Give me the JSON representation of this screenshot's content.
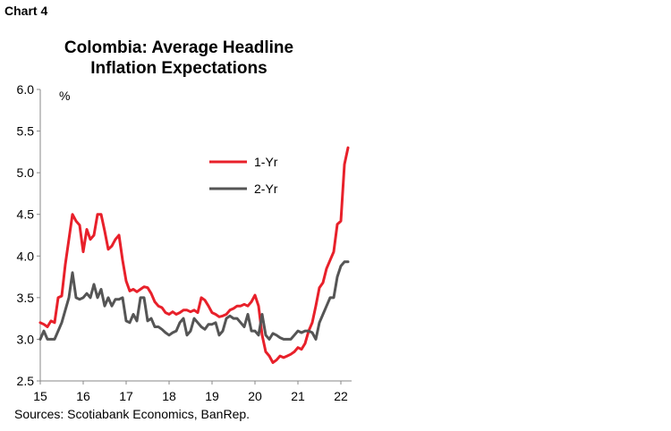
{
  "header": {
    "chart_label": "Chart 4"
  },
  "footer": {
    "source": "Sources: Scotiabank Economics, BanRep."
  },
  "chart_data": {
    "type": "line",
    "title_lines": [
      "Colombia: Average Headline",
      "Inflation Expectations"
    ],
    "unit": "%",
    "ylim": [
      2.5,
      6.0
    ],
    "yticks": [
      "6.0",
      "5.5",
      "5.0",
      "4.5",
      "4.0",
      "3.5",
      "3.0",
      "2.5"
    ],
    "xlim": [
      15,
      22.25
    ],
    "xticks": [
      "15",
      "16",
      "17",
      "18",
      "19",
      "20",
      "21",
      "22"
    ],
    "grid": false,
    "legend": "center-right",
    "colors": {
      "1-Yr": "#e8202a",
      "2-Yr": "#555555"
    },
    "series": [
      {
        "name": "1-Yr",
        "x": [
          15.0,
          15.083,
          15.167,
          15.25,
          15.333,
          15.417,
          15.5,
          15.583,
          15.667,
          15.75,
          15.833,
          15.917,
          16.0,
          16.083,
          16.167,
          16.25,
          16.333,
          16.417,
          16.5,
          16.583,
          16.667,
          16.75,
          16.833,
          16.917,
          17.0,
          17.083,
          17.167,
          17.25,
          17.333,
          17.417,
          17.5,
          17.583,
          17.667,
          17.75,
          17.833,
          17.917,
          18.0,
          18.083,
          18.167,
          18.25,
          18.333,
          18.417,
          18.5,
          18.583,
          18.667,
          18.75,
          18.833,
          18.917,
          19.0,
          19.083,
          19.167,
          19.25,
          19.333,
          19.417,
          19.5,
          19.583,
          19.667,
          19.75,
          19.833,
          19.917,
          20.0,
          20.083,
          20.167,
          20.25,
          20.333,
          20.417,
          20.5,
          20.583,
          20.667,
          20.75,
          20.833,
          20.917,
          21.0,
          21.083,
          21.167,
          21.25,
          21.333,
          21.417,
          21.5,
          21.583,
          21.667,
          21.75,
          21.833,
          21.917,
          22.0,
          22.083,
          22.167
        ],
        "values": [
          3.2,
          3.18,
          3.15,
          3.22,
          3.2,
          3.5,
          3.52,
          3.9,
          4.2,
          4.5,
          4.42,
          4.37,
          4.05,
          4.32,
          4.2,
          4.25,
          4.5,
          4.5,
          4.3,
          4.08,
          4.12,
          4.2,
          4.25,
          3.95,
          3.7,
          3.58,
          3.6,
          3.57,
          3.6,
          3.63,
          3.62,
          3.55,
          3.45,
          3.4,
          3.38,
          3.32,
          3.3,
          3.33,
          3.3,
          3.32,
          3.35,
          3.35,
          3.33,
          3.35,
          3.32,
          3.5,
          3.47,
          3.4,
          3.32,
          3.3,
          3.27,
          3.28,
          3.3,
          3.35,
          3.37,
          3.4,
          3.4,
          3.42,
          3.4,
          3.45,
          3.53,
          3.4,
          3.05,
          2.85,
          2.8,
          2.72,
          2.75,
          2.8,
          2.78,
          2.8,
          2.82,
          2.85,
          2.9,
          2.88,
          2.95,
          3.1,
          3.2,
          3.4,
          3.62,
          3.68,
          3.85,
          3.95,
          4.05,
          4.38,
          4.42,
          5.1,
          5.3
        ]
      },
      {
        "name": "2-Yr",
        "x": [
          15.0,
          15.083,
          15.167,
          15.25,
          15.333,
          15.417,
          15.5,
          15.583,
          15.667,
          15.75,
          15.833,
          15.917,
          16.0,
          16.083,
          16.167,
          16.25,
          16.333,
          16.417,
          16.5,
          16.583,
          16.667,
          16.75,
          16.833,
          16.917,
          17.0,
          17.083,
          17.167,
          17.25,
          17.333,
          17.417,
          17.5,
          17.583,
          17.667,
          17.75,
          17.833,
          17.917,
          18.0,
          18.083,
          18.167,
          18.25,
          18.333,
          18.417,
          18.5,
          18.583,
          18.667,
          18.75,
          18.833,
          18.917,
          19.0,
          19.083,
          19.167,
          19.25,
          19.333,
          19.417,
          19.5,
          19.583,
          19.667,
          19.75,
          19.833,
          19.917,
          20.0,
          20.083,
          20.167,
          20.25,
          20.333,
          20.417,
          20.5,
          20.583,
          20.667,
          20.75,
          20.833,
          20.917,
          21.0,
          21.083,
          21.167,
          21.25,
          21.333,
          21.417,
          21.5,
          21.583,
          21.667,
          21.75,
          21.833,
          21.917,
          22.0,
          22.083,
          22.167
        ],
        "values": [
          3.0,
          3.1,
          3.0,
          3.0,
          3.0,
          3.1,
          3.2,
          3.35,
          3.5,
          3.8,
          3.5,
          3.48,
          3.5,
          3.55,
          3.5,
          3.66,
          3.5,
          3.6,
          3.4,
          3.5,
          3.4,
          3.48,
          3.48,
          3.5,
          3.22,
          3.2,
          3.3,
          3.22,
          3.5,
          3.5,
          3.22,
          3.25,
          3.15,
          3.15,
          3.12,
          3.08,
          3.05,
          3.08,
          3.1,
          3.2,
          3.25,
          3.05,
          3.1,
          3.25,
          3.2,
          3.15,
          3.12,
          3.18,
          3.18,
          3.2,
          3.05,
          3.1,
          3.25,
          3.28,
          3.25,
          3.25,
          3.2,
          3.15,
          3.3,
          3.1,
          3.1,
          3.05,
          3.3,
          3.05,
          3.0,
          3.07,
          3.05,
          3.02,
          3.0,
          3.0,
          3.0,
          3.05,
          3.1,
          3.08,
          3.1,
          3.1,
          3.08,
          3.0,
          3.2,
          3.3,
          3.4,
          3.5,
          3.5,
          3.75,
          3.88,
          3.93,
          3.93
        ]
      }
    ]
  }
}
